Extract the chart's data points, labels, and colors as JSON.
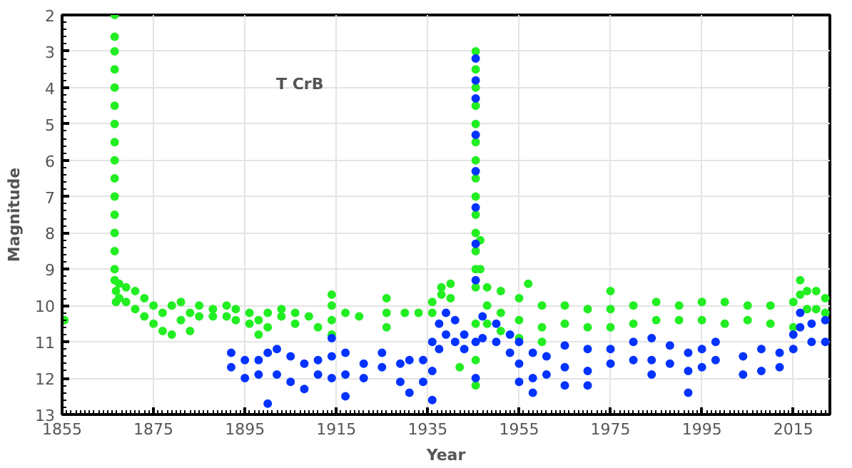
{
  "chart_data": {
    "type": "scatter",
    "xlabel": "Year",
    "ylabel": "Magnitude",
    "annotations": [
      "T CrB"
    ],
    "xlim": [
      1855,
      2023
    ],
    "xticks": [
      1855,
      1875,
      1895,
      1915,
      1935,
      1955,
      1975,
      1995,
      2015
    ],
    "ylim": [
      13,
      2
    ],
    "yticks": [
      2,
      3,
      4,
      5,
      6,
      7,
      8,
      9,
      10,
      11,
      12,
      13
    ],
    "grid": true,
    "marker": "circle",
    "series": [
      {
        "color": "#22ee22",
        "x": [
          1855.5,
          1866.5,
          1866.5,
          1866.5,
          1866.5,
          1866.5,
          1866.5,
          1866.5,
          1866.5,
          1866.5,
          1866.5,
          1866.5,
          1866.5,
          1866.5,
          1866.5,
          1866.5,
          1866.5,
          1866.8,
          1866.8,
          1867.5,
          1867.5,
          1869,
          1869,
          1871,
          1871,
          1873,
          1873,
          1875,
          1875,
          1877,
          1877,
          1879,
          1879,
          1881,
          1881,
          1883,
          1883,
          1885,
          1885,
          1888,
          1888,
          1891,
          1891,
          1893,
          1893,
          1896,
          1896,
          1898,
          1898,
          1900,
          1900,
          1903,
          1903,
          1906,
          1906,
          1909,
          1911,
          1914,
          1914,
          1914,
          1914,
          1917,
          1920,
          1926,
          1926,
          1926,
          1930,
          1933,
          1936,
          1936,
          1938,
          1938,
          1940,
          1940,
          1942,
          1945.5,
          1945.5,
          1945.5,
          1945.5,
          1945.5,
          1945.5,
          1945.5,
          1945.5,
          1945.5,
          1945.5,
          1945.5,
          1945.5,
          1945.5,
          1945.5,
          1945.5,
          1945.5,
          1945.5,
          1946.5,
          1946.5,
          1948,
          1948,
          1948,
          1951,
          1951,
          1951,
          1955,
          1955,
          1955,
          1957,
          1960,
          1960,
          1960,
          1965,
          1965,
          1970,
          1970,
          1975,
          1975,
          1975,
          1980,
          1980,
          1985,
          1985,
          1990,
          1990,
          1995,
          1995,
          2000,
          2000,
          2005,
          2005,
          2010,
          2010,
          2015,
          2015,
          2016.5,
          2016.5,
          2018,
          2018,
          2020,
          2020,
          2022,
          2022
        ],
        "values": [
          10.4,
          2.0,
          2.6,
          3.0,
          3.5,
          4.0,
          4.5,
          5.0,
          5.5,
          6.0,
          6.5,
          7.0,
          7.5,
          8.0,
          8.5,
          9.0,
          9.3,
          9.6,
          9.9,
          9.4,
          9.8,
          9.5,
          9.9,
          9.6,
          10.1,
          9.8,
          10.3,
          10.0,
          10.5,
          10.2,
          10.7,
          10.8,
          10.0,
          9.9,
          10.4,
          10.2,
          10.7,
          10.0,
          10.3,
          10.1,
          10.3,
          10.0,
          10.3,
          10.1,
          10.4,
          10.2,
          10.5,
          10.8,
          10.4,
          10.2,
          10.6,
          10.3,
          10.1,
          10.2,
          10.5,
          10.3,
          10.6,
          9.7,
          10.0,
          10.4,
          10.8,
          10.2,
          10.3,
          9.8,
          10.2,
          10.6,
          10.2,
          10.2,
          10.2,
          9.9,
          9.7,
          9.5,
          9.8,
          9.4,
          11.7,
          3.0,
          3.5,
          4.0,
          4.5,
          5.0,
          5.5,
          6.0,
          6.5,
          7.0,
          7.5,
          8.0,
          8.5,
          9.0,
          9.5,
          10.5,
          11.5,
          12.2,
          8.2,
          9.0,
          9.5,
          10.0,
          10.5,
          9.6,
          10.2,
          10.7,
          9.8,
          10.4,
          10.9,
          9.4,
          10.0,
          10.6,
          11.0,
          10.0,
          10.5,
          10.1,
          10.6,
          9.6,
          10.1,
          10.6,
          10.0,
          10.5,
          9.9,
          10.4,
          10.0,
          10.4,
          9.9,
          10.4,
          9.9,
          10.5,
          10.0,
          10.4,
          10.0,
          10.5,
          9.9,
          10.6,
          9.3,
          9.7,
          9.6,
          10.1,
          9.6,
          10.1,
          9.8,
          10.2
        ]
      },
      {
        "color": "#0033ff",
        "x": [
          1892,
          1892,
          1895,
          1895,
          1898,
          1898,
          1900,
          1900,
          1902,
          1902,
          1905,
          1905,
          1908,
          1908,
          1911,
          1911,
          1914,
          1914,
          1914,
          1917,
          1917,
          1917,
          1921,
          1921,
          1925,
          1925,
          1929,
          1929,
          1931,
          1931,
          1934,
          1934,
          1936,
          1936,
          1936,
          1937.5,
          1937.5,
          1939,
          1939,
          1941,
          1941,
          1943,
          1943,
          1945.5,
          1945.5,
          1945.5,
          1945.5,
          1945.5,
          1945.5,
          1945.5,
          1945.5,
          1945.5,
          1945.5,
          1947,
          1947,
          1950,
          1950,
          1953,
          1953,
          1955,
          1955,
          1955,
          1958,
          1958,
          1958,
          1961,
          1961,
          1965,
          1965,
          1965,
          1970,
          1970,
          1970,
          1975,
          1975,
          1980,
          1980,
          1984,
          1984,
          1984,
          1988,
          1988,
          1992,
          1992,
          1992,
          1995,
          1995,
          1998,
          1998,
          2004,
          2004,
          2008,
          2008,
          2012,
          2012,
          2015,
          2015,
          2016.5,
          2016.5,
          2019,
          2019,
          2022,
          2022
        ],
        "values": [
          11.3,
          11.7,
          11.5,
          12.0,
          11.5,
          11.9,
          11.3,
          12.7,
          11.2,
          11.9,
          11.4,
          12.1,
          11.6,
          12.3,
          11.5,
          11.9,
          10.9,
          11.4,
          12.0,
          11.3,
          11.9,
          12.5,
          11.6,
          12.0,
          11.7,
          11.3,
          11.6,
          12.1,
          11.5,
          12.4,
          11.5,
          12.1,
          11.0,
          11.8,
          12.6,
          10.5,
          11.2,
          10.2,
          10.8,
          10.4,
          11.0,
          10.8,
          11.2,
          3.2,
          3.8,
          4.3,
          5.3,
          6.3,
          7.3,
          8.3,
          9.3,
          11.0,
          12.0,
          10.3,
          10.9,
          10.5,
          11.0,
          10.8,
          11.3,
          11.0,
          11.6,
          12.1,
          11.3,
          12.0,
          12.4,
          11.4,
          11.9,
          11.1,
          11.7,
          12.2,
          11.2,
          11.8,
          12.2,
          11.2,
          11.6,
          11.0,
          11.5,
          10.9,
          11.5,
          11.9,
          11.1,
          11.6,
          11.3,
          11.8,
          12.4,
          11.2,
          11.7,
          11.0,
          11.5,
          11.4,
          11.9,
          11.2,
          11.8,
          11.3,
          11.7,
          10.8,
          11.2,
          10.2,
          10.6,
          10.5,
          11.0,
          10.4,
          11.0
        ]
      }
    ]
  }
}
